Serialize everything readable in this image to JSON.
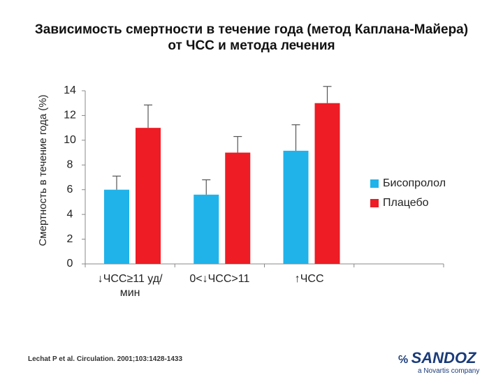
{
  "chart_data": {
    "type": "bar",
    "title": [
      "Зависимость смертности в течение года (метод Каплана-Майера)",
      "от ЧСС и метода лечения"
    ],
    "y_label": "Смертность в течение года (%)",
    "categories": [
      "↓ЧСС≥11 уд/мин",
      "0<↓ЧСС>11",
      "↑ЧСС",
      null
    ],
    "series": [
      {
        "name": "Бисопролол",
        "color": "#1fb3ea",
        "values": [
          6,
          5.6,
          9.15,
          null
        ],
        "errors": [
          1.1,
          1.2,
          2.1,
          null
        ]
      },
      {
        "name": "Плацебо",
        "color": "#ee1c24",
        "values": [
          11,
          9,
          13,
          null
        ],
        "errors": [
          1.85,
          1.3,
          1.35,
          null
        ]
      }
    ],
    "ylim": [
      0,
      14
    ],
    "yticks": [
      0,
      2,
      4,
      6,
      8,
      10,
      12,
      14
    ],
    "grid": false,
    "legend": "right",
    "footnote": "Lechat P et al. Circulation. 2001;103:1428-1433",
    "logo": {
      "brand": "SANDOZ",
      "tagline": "a Novartis company"
    }
  }
}
